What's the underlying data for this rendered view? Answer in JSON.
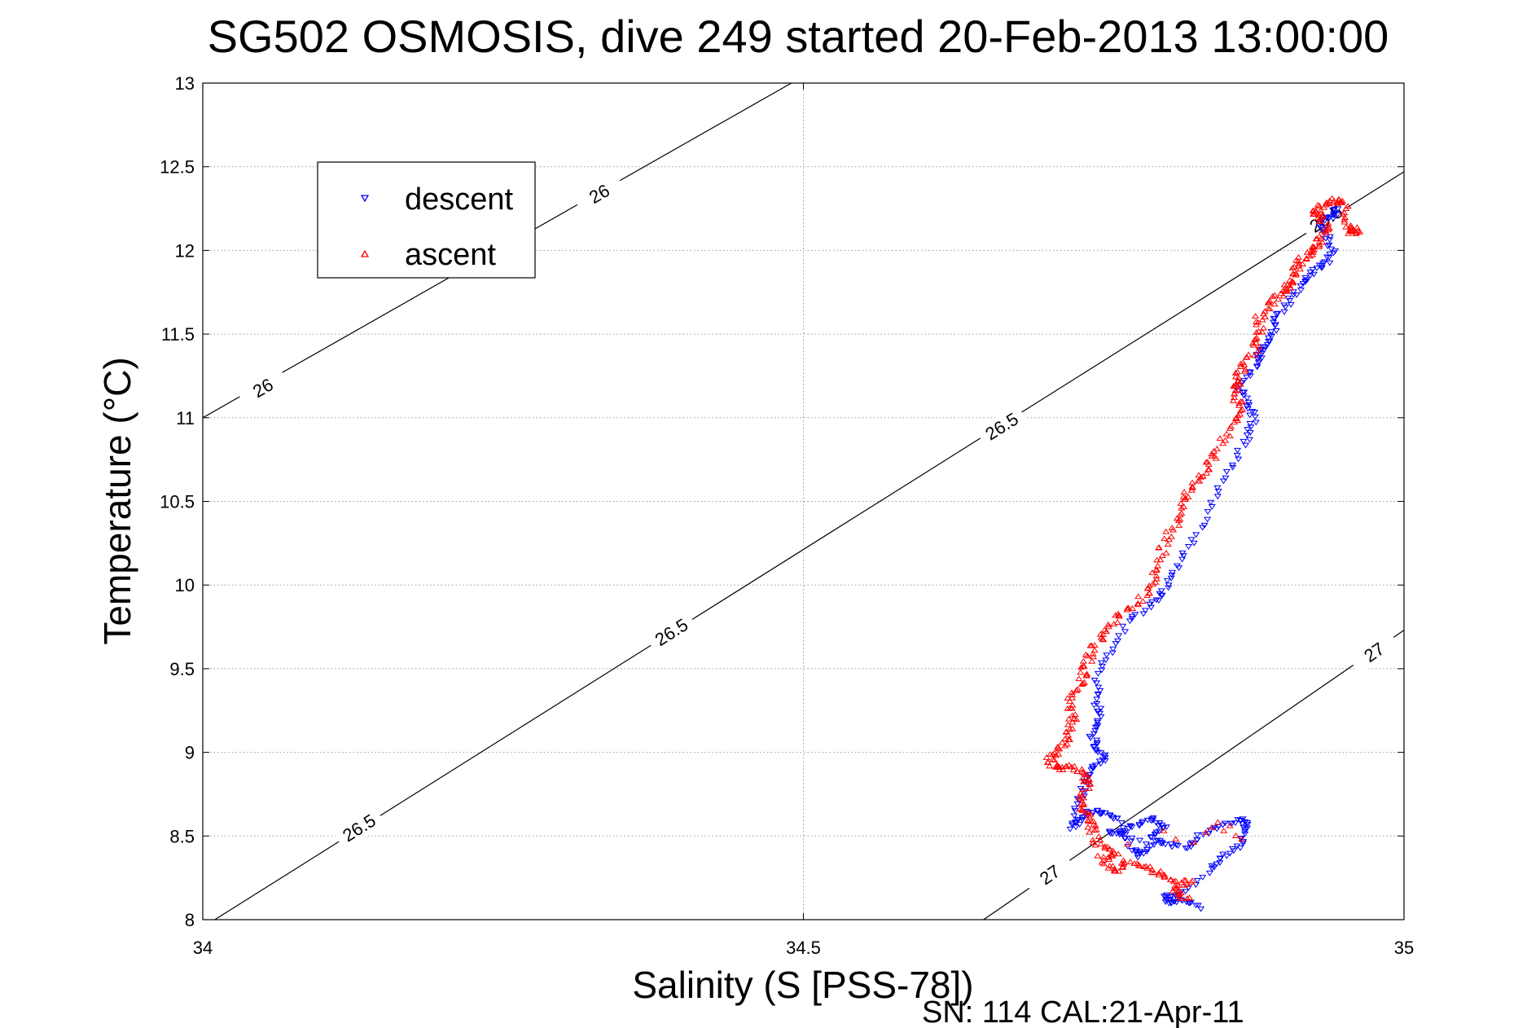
{
  "chart_data": {
    "type": "scatter",
    "title": "SG502 OSMOSIS, dive 249 started 20-Feb-2013 13:00:00",
    "xlabel": "Salinity (S [PSS-78])",
    "ylabel": "Temperature (°C)",
    "footnote": "SN: 114  CAL:21-Apr-11",
    "xlim": [
      34,
      35
    ],
    "ylim": [
      8,
      13
    ],
    "xticks": [
      34,
      34.5,
      35
    ],
    "xtick_labels": [
      "34",
      "34.5",
      "35"
    ],
    "yticks": [
      8,
      8.5,
      9,
      9.5,
      10,
      10.5,
      11,
      11.5,
      12,
      12.5,
      13
    ],
    "ytick_labels": [
      "8",
      "8.5",
      "9",
      "9.5",
      "10",
      "10.5",
      "11",
      "11.5",
      "12",
      "12.5",
      "13"
    ],
    "grid": true,
    "legend_position": "top-left",
    "colors": {
      "descent": "#0000ff",
      "ascent": "#ff0000",
      "contour": "#000000",
      "grid": "#999999"
    },
    "contours": [
      {
        "level_label": "26",
        "points": [
          [
            34.0,
            11.0
          ],
          [
            34.49,
            13.0
          ]
        ],
        "labels": [
          {
            "x": 34.05,
            "y": 11.18
          },
          {
            "x": 34.33,
            "y": 12.34
          }
        ]
      },
      {
        "level_label": "26.5",
        "points": [
          [
            34.01,
            8.0
          ],
          [
            35.0,
            12.47
          ]
        ],
        "labels": [
          {
            "x": 34.13,
            "y": 8.55
          },
          {
            "x": 34.39,
            "y": 9.72
          },
          {
            "x": 34.665,
            "y": 10.95
          },
          {
            "x": 34.935,
            "y": 12.19
          }
        ]
      },
      {
        "level_label": "27",
        "points": [
          [
            34.65,
            8.0
          ],
          [
            35.0,
            9.73
          ]
        ],
        "labels": [
          {
            "x": 34.705,
            "y": 8.27
          },
          {
            "x": 34.975,
            "y": 9.6
          }
        ]
      }
    ],
    "series": [
      {
        "name": "descent",
        "marker": "triangle-down",
        "path": [
          [
            34.83,
            8.07
          ],
          [
            34.815,
            8.12
          ],
          [
            34.805,
            8.1
          ],
          [
            34.8,
            8.14
          ],
          [
            34.815,
            8.16
          ],
          [
            34.84,
            8.3
          ],
          [
            34.85,
            8.38
          ],
          [
            34.865,
            8.45
          ],
          [
            34.87,
            8.55
          ],
          [
            34.865,
            8.6
          ],
          [
            34.85,
            8.57
          ],
          [
            34.83,
            8.5
          ],
          [
            34.82,
            8.43
          ],
          [
            34.8,
            8.45
          ],
          [
            34.79,
            8.5
          ],
          [
            34.8,
            8.56
          ],
          [
            34.79,
            8.6
          ],
          [
            34.775,
            8.56
          ],
          [
            34.765,
            8.51
          ],
          [
            34.755,
            8.53
          ],
          [
            34.79,
            8.45
          ],
          [
            34.78,
            8.38
          ],
          [
            34.775,
            8.42
          ],
          [
            34.76,
            8.6
          ],
          [
            34.75,
            8.64
          ],
          [
            34.74,
            8.65
          ],
          [
            34.73,
            8.6
          ],
          [
            34.725,
            8.55
          ],
          [
            34.73,
            8.72
          ],
          [
            34.735,
            8.82
          ],
          [
            34.74,
            8.9
          ],
          [
            34.75,
            8.96
          ],
          [
            34.745,
            9.02
          ],
          [
            34.74,
            9.1
          ],
          [
            34.745,
            9.2
          ],
          [
            34.745,
            9.3
          ],
          [
            34.745,
            9.44
          ],
          [
            34.755,
            9.6
          ],
          [
            34.77,
            9.78
          ],
          [
            34.79,
            9.88
          ],
          [
            34.8,
            9.97
          ],
          [
            34.81,
            10.1
          ],
          [
            34.825,
            10.27
          ],
          [
            34.84,
            10.5
          ],
          [
            34.855,
            10.7
          ],
          [
            34.87,
            10.88
          ],
          [
            34.875,
            11.0
          ],
          [
            34.868,
            11.1
          ],
          [
            34.862,
            11.2
          ],
          [
            34.875,
            11.3
          ],
          [
            34.88,
            11.38
          ],
          [
            34.885,
            11.42
          ],
          [
            34.89,
            11.5
          ],
          [
            34.895,
            11.6
          ],
          [
            34.905,
            11.7
          ],
          [
            34.915,
            11.8
          ],
          [
            34.925,
            11.88
          ],
          [
            34.935,
            11.92
          ],
          [
            34.94,
            12.0
          ],
          [
            34.935,
            12.1
          ],
          [
            34.93,
            12.18
          ],
          [
            34.94,
            12.2
          ],
          [
            34.945,
            12.25
          ]
        ]
      },
      {
        "name": "ascent",
        "marker": "triangle-up",
        "path": [
          [
            34.82,
            8.12
          ],
          [
            34.81,
            8.18
          ],
          [
            34.82,
            8.22
          ],
          [
            34.8,
            8.25
          ],
          [
            34.79,
            8.3
          ],
          [
            34.77,
            8.35
          ],
          [
            34.76,
            8.28
          ],
          [
            34.75,
            8.36
          ],
          [
            34.76,
            8.4
          ],
          [
            34.745,
            8.45
          ],
          [
            34.74,
            8.55
          ],
          [
            34.74,
            8.62
          ],
          [
            34.73,
            8.7
          ],
          [
            34.735,
            8.8
          ],
          [
            34.735,
            8.87
          ],
          [
            34.72,
            8.92
          ],
          [
            34.71,
            8.9
          ],
          [
            34.705,
            8.96
          ],
          [
            34.715,
            9.02
          ],
          [
            34.72,
            9.1
          ],
          [
            34.725,
            9.2
          ],
          [
            34.72,
            9.3
          ],
          [
            34.73,
            9.4
          ],
          [
            34.735,
            9.5
          ],
          [
            34.74,
            9.6
          ],
          [
            34.75,
            9.7
          ],
          [
            34.76,
            9.8
          ],
          [
            34.775,
            9.88
          ],
          [
            34.79,
            9.98
          ],
          [
            34.795,
            10.1
          ],
          [
            34.8,
            10.25
          ],
          [
            34.81,
            10.38
          ],
          [
            34.815,
            10.5
          ],
          [
            34.825,
            10.6
          ],
          [
            34.835,
            10.7
          ],
          [
            34.845,
            10.8
          ],
          [
            34.855,
            10.95
          ],
          [
            34.865,
            11.05
          ],
          [
            34.86,
            11.15
          ],
          [
            34.86,
            11.22
          ],
          [
            34.865,
            11.3
          ],
          [
            34.875,
            11.4
          ],
          [
            34.88,
            11.5
          ],
          [
            34.88,
            11.6
          ],
          [
            34.89,
            11.7
          ],
          [
            34.9,
            11.75
          ],
          [
            34.905,
            11.8
          ],
          [
            34.91,
            11.88
          ],
          [
            34.915,
            11.95
          ],
          [
            34.925,
            12.0
          ],
          [
            34.93,
            12.05
          ],
          [
            34.935,
            12.12
          ],
          [
            34.93,
            12.2
          ],
          [
            34.925,
            12.23
          ],
          [
            34.935,
            12.28
          ],
          [
            34.945,
            12.3
          ],
          [
            34.95,
            12.28
          ],
          [
            34.955,
            12.15
          ],
          [
            34.96,
            12.1
          ],
          [
            34.955,
            12.12
          ]
        ],
        "extra_points": [
          [
            34.84,
            8.55
          ],
          [
            34.85,
            8.53
          ],
          [
            34.86,
            8.5
          ],
          [
            34.845,
            8.58
          ],
          [
            34.835,
            8.52
          ],
          [
            34.81,
            8.48
          ],
          [
            34.8,
            8.53
          ],
          [
            34.825,
            8.46
          ],
          [
            34.855,
            8.56
          ],
          [
            34.865,
            8.48
          ],
          [
            34.77,
            8.45
          ],
          [
            34.78,
            8.32
          ],
          [
            34.79,
            8.28
          ],
          [
            34.755,
            8.32
          ],
          [
            34.745,
            8.38
          ]
        ]
      }
    ]
  }
}
